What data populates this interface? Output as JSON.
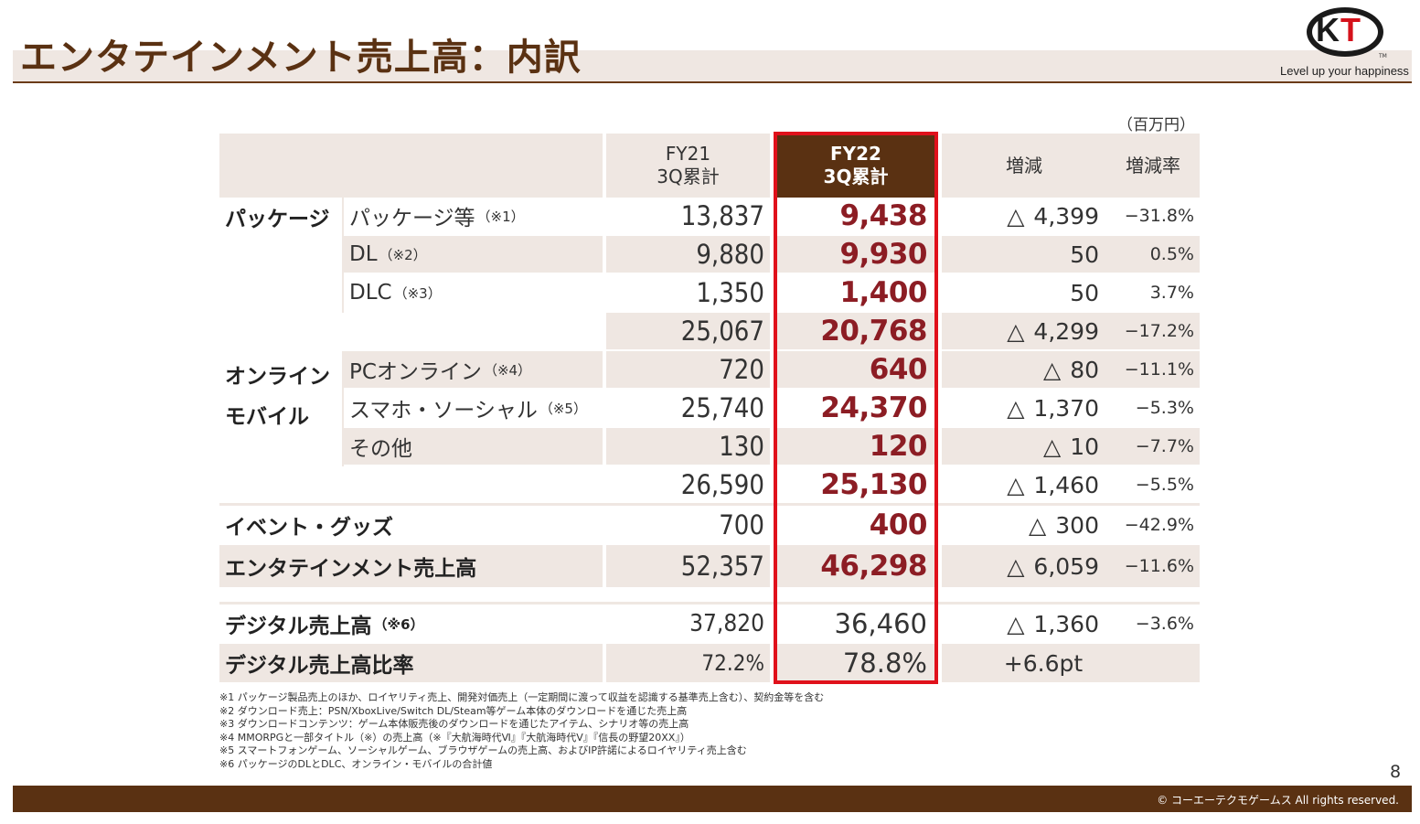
{
  "header": {
    "title": "エンタテインメント売上高：内訳",
    "logo_k": "K",
    "logo_t": "T",
    "tm": "TM",
    "tagline": "Level up your happiness"
  },
  "unit": "（百万円）",
  "columns": {
    "fy21_line1": "FY21",
    "fy21_line2": "3Q累計",
    "fy22_line1": "FY22",
    "fy22_line2": "3Q累計",
    "change": "増減",
    "rate": "増減率"
  },
  "rows": {
    "package_group": "パッケージ",
    "pkg": {
      "label": "パッケージ等",
      "note": "（※1）",
      "fy21": "13,837",
      "fy22": "9,438",
      "tri": "△",
      "change": "4,399",
      "rate": "−31.8%"
    },
    "dl": {
      "label": "DL",
      "note": "（※2）",
      "fy21": "9,880",
      "fy22": "9,930",
      "change": "50",
      "rate": "0.5%"
    },
    "dlc": {
      "label": "DLC",
      "note": "（※3）",
      "fy21": "1,350",
      "fy22": "1,400",
      "change": "50",
      "rate": "3.7%"
    },
    "pkg_total": {
      "fy21": "25,067",
      "fy22": "20,768",
      "tri": "△",
      "change": "4,299",
      "rate": "−17.2%"
    },
    "online_group_1": "オンライン",
    "online_group_2": "モバイル",
    "pc": {
      "label": "PCオンライン",
      "note": "（※4）",
      "fy21": "720",
      "fy22": "640",
      "tri": "△",
      "change": "80",
      "rate": "−11.1%"
    },
    "smart": {
      "label": "スマホ・ソーシャル",
      "note": "（※5）",
      "fy21": "25,740",
      "fy22": "24,370",
      "tri": "△",
      "change": "1,370",
      "rate": "−5.3%"
    },
    "other": {
      "label": "その他",
      "fy21": "130",
      "fy22": "120",
      "tri": "△",
      "change": "10",
      "rate": "−7.7%"
    },
    "online_total": {
      "fy21": "26,590",
      "fy22": "25,130",
      "tri": "△",
      "change": "1,460",
      "rate": "−5.5%"
    },
    "event": {
      "label": "イベント・グッズ",
      "fy21": "700",
      "fy22": "400",
      "tri": "△",
      "change": "300",
      "rate": "−42.9%"
    },
    "ent_total": {
      "label": "エンタテインメント売上高",
      "fy21": "52,357",
      "fy22": "46,298",
      "tri": "△",
      "change": "6,059",
      "rate": "−11.6%"
    },
    "digital": {
      "label": "デジタル売上高",
      "note": "（※6）",
      "fy21": "37,820",
      "fy22": "36,460",
      "tri": "△",
      "change": "1,360",
      "rate": "−3.6%"
    },
    "digital_ratio": {
      "label": "デジタル売上高比率",
      "fy21": "72.2%",
      "fy22": "78.8%",
      "change": "+6.6pt"
    }
  },
  "notes": [
    "※1 パッケージ製品売上のほか、ロイヤリティ売上、開発対価売上（一定期間に渡って収益を認識する基準売上含む）、契約金等を含む",
    "※2 ダウンロード売上：PSN/XboxLive/Switch DL/Steam等ゲーム本体のダウンロードを通じた売上高",
    "※3 ダウンロードコンテンツ：ゲーム本体販売後のダウンロードを通じたアイテム、シナリオ等の売上高",
    "※4 MMORPGと一部タイトル（※）の売上高（※『大航海時代Ⅵ』『大航海時代Ⅴ』『信長の野望20XX』）",
    "※5 スマートフォンゲーム、ソーシャルゲーム、ブラウザゲームの売上高、およびIP許諾によるロイヤリティ売上含む",
    "※6 パッケージのDLとDLC、オンライン・モバイルの合計値"
  ],
  "page_number": "8",
  "copyright": "© コーエーテクモゲームス All rights reserved."
}
